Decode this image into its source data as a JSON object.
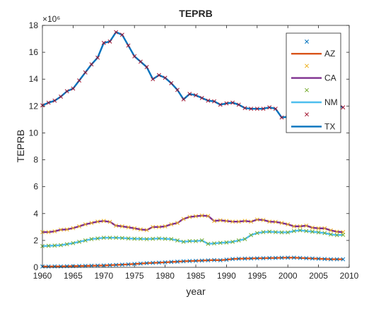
{
  "chart_data": {
    "type": "line",
    "title": "TEPRB",
    "xlabel": "year",
    "ylabel": "TEPRB",
    "y_exponent_label": "×10⁶",
    "xlim": [
      1960,
      2010
    ],
    "ylim": [
      0,
      18000000
    ],
    "xticks": [
      1960,
      1965,
      1970,
      1975,
      1980,
      1985,
      1990,
      1995,
      2000,
      2005,
      2010
    ],
    "yticks": [
      0,
      2,
      4,
      6,
      8,
      10,
      12,
      14,
      16,
      18
    ],
    "legend_position": "top-right",
    "legend_entries": [
      "",
      "AZ",
      "",
      "CA",
      "",
      "NM",
      "",
      "TX"
    ],
    "x": [
      1960,
      1961,
      1962,
      1963,
      1964,
      1965,
      1966,
      1967,
      1968,
      1969,
      1970,
      1971,
      1972,
      1973,
      1974,
      1975,
      1976,
      1977,
      1978,
      1979,
      1980,
      1981,
      1982,
      1983,
      1984,
      1985,
      1986,
      1987,
      1988,
      1989,
      1990,
      1991,
      1992,
      1993,
      1994,
      1995,
      1996,
      1997,
      1998,
      1999,
      2000,
      2001,
      2002,
      2003,
      2004,
      2005,
      2006,
      2007,
      2008,
      2009
    ],
    "series": [
      {
        "name": "AZ",
        "color": "#D95319",
        "marker_color": "#0072BD",
        "values": [
          0.06,
          0.06,
          0.07,
          0.07,
          0.08,
          0.09,
          0.1,
          0.11,
          0.12,
          0.13,
          0.14,
          0.16,
          0.18,
          0.2,
          0.22,
          0.25,
          0.28,
          0.31,
          0.33,
          0.35,
          0.37,
          0.4,
          0.42,
          0.45,
          0.47,
          0.48,
          0.5,
          0.52,
          0.54,
          0.53,
          0.57,
          0.62,
          0.64,
          0.65,
          0.66,
          0.67,
          0.68,
          0.69,
          0.7,
          0.71,
          0.72,
          0.72,
          0.7,
          0.68,
          0.66,
          0.64,
          0.62,
          0.6,
          0.6,
          0.6
        ]
      },
      {
        "name": "CA",
        "color": "#7E2F8E",
        "marker_color": "#EDB120",
        "values": [
          2.62,
          2.62,
          2.68,
          2.8,
          2.82,
          2.92,
          3.05,
          3.2,
          3.3,
          3.4,
          3.45,
          3.38,
          3.1,
          3.05,
          2.98,
          2.9,
          2.82,
          2.78,
          3.0,
          3.0,
          3.05,
          3.2,
          3.3,
          3.6,
          3.75,
          3.8,
          3.85,
          3.82,
          3.45,
          3.5,
          3.45,
          3.4,
          3.4,
          3.45,
          3.4,
          3.55,
          3.52,
          3.4,
          3.38,
          3.3,
          3.2,
          3.05,
          3.05,
          3.1,
          2.95,
          2.9,
          2.9,
          2.75,
          2.65,
          2.62
        ]
      },
      {
        "name": "NM",
        "color": "#4DBEEE",
        "marker_color": "#77AC30",
        "values": [
          1.58,
          1.6,
          1.62,
          1.65,
          1.72,
          1.8,
          1.9,
          2.0,
          2.1,
          2.15,
          2.2,
          2.2,
          2.2,
          2.18,
          2.15,
          2.13,
          2.12,
          2.1,
          2.12,
          2.15,
          2.12,
          2.1,
          2.0,
          1.9,
          1.95,
          1.95,
          2.0,
          1.75,
          1.78,
          1.82,
          1.85,
          1.9,
          2.0,
          2.1,
          2.4,
          2.55,
          2.62,
          2.65,
          2.62,
          2.6,
          2.6,
          2.7,
          2.75,
          2.7,
          2.65,
          2.6,
          2.55,
          2.45,
          2.4,
          2.42
        ]
      },
      {
        "name": "TX",
        "color": "#0072BD",
        "marker_color": "#A2142F",
        "values": [
          12.05,
          12.25,
          12.4,
          12.7,
          13.1,
          13.3,
          13.9,
          14.5,
          15.1,
          15.6,
          16.7,
          16.8,
          17.5,
          17.3,
          16.5,
          15.7,
          15.3,
          14.9,
          14.0,
          14.3,
          14.1,
          13.7,
          13.2,
          12.5,
          12.9,
          12.8,
          12.6,
          12.4,
          12.35,
          12.1,
          12.2,
          12.25,
          12.1,
          11.85,
          11.8,
          11.8,
          11.8,
          11.9,
          11.8,
          11.15,
          11.2,
          11.4,
          11.6,
          11.9,
          11.95,
          12.0,
          12.0,
          11.95,
          12.1,
          11.9
        ]
      }
    ]
  }
}
